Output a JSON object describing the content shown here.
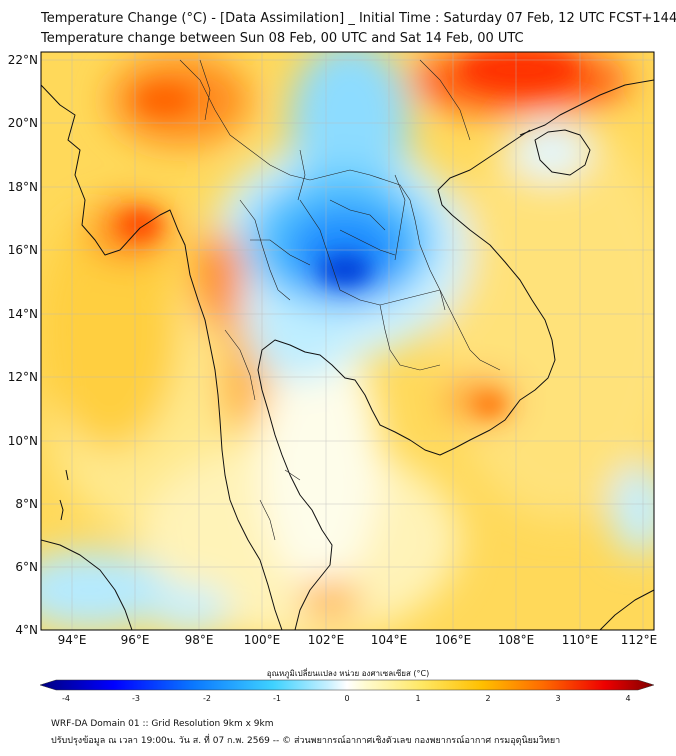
{
  "title_line1": "Temperature Change (°C) - [Data Assimilation] _ Initial Time : Saturday 07 Feb, 12 UTC FCST+144",
  "title_line2": "Temperature change between Sun 08 Feb, 00 UTC and Sat 14 Feb, 00 UTC",
  "colorbar_title": "อุณหภูมิเปลี่ยนแปลง หน่วย องศาเซลเซียส (°C)",
  "footer_line1": "WRF-DA Domain 01 :: Grid Resolution 9km x 9km",
  "footer_line2": "ปรับปรุงข้อมูล ณ เวลา 19:00น. วัน ส. ที่ 07 ก.พ. 2569 -- © ส่วนพยากรณ์อากาศเชิงตัวเลข กองพยากรณ์อากาศ กรมอุตุนิยมวิทยา",
  "lat_labels": [
    "22°N",
    "20°N",
    "18°N",
    "16°N",
    "14°N",
    "12°N",
    "10°N",
    "8°N",
    "6°N",
    "4°N"
  ],
  "lon_labels": [
    "94°E",
    "96°E",
    "98°E",
    "100°E",
    "102°E",
    "104°E",
    "106°E",
    "108°E",
    "110°E",
    "112°E"
  ],
  "colorbar_ticks": [
    "-4",
    "-3",
    "-2",
    "-1",
    "0",
    "1",
    "2",
    "3",
    "4"
  ],
  "colorbar_range": [
    -4,
    4
  ],
  "colors": {
    "cold_max": "#00007f",
    "cold": "#1e90ff",
    "cool": "#8fd8ff",
    "neutral": "#fdfcd0",
    "warm": "#ffd23a",
    "hot": "#ff6a00",
    "hot_max": "#7f0000",
    "coastline": "#111111"
  }
}
